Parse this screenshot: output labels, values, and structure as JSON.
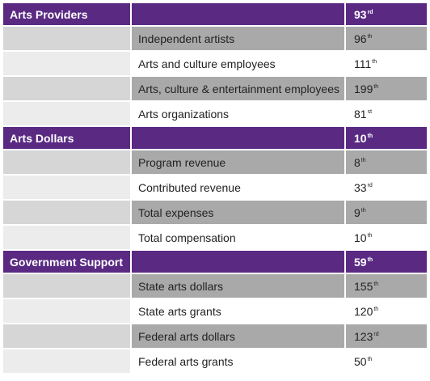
{
  "sections": [
    {
      "title": "Arts Providers",
      "rank": 93,
      "suffix": "rd",
      "items": [
        {
          "label": "Independent artists",
          "rank": 96,
          "suffix": "th"
        },
        {
          "label": "Arts and culture employees",
          "rank": 111,
          "suffix": "th"
        },
        {
          "label": "Arts, culture & entertainment employees",
          "rank": 199,
          "suffix": "th"
        },
        {
          "label": "Arts organizations",
          "rank": 81,
          "suffix": "st"
        }
      ]
    },
    {
      "title": "Arts Dollars",
      "rank": 10,
      "suffix": "th",
      "items": [
        {
          "label": "Program revenue",
          "rank": 8,
          "suffix": "th"
        },
        {
          "label": "Contributed revenue",
          "rank": 33,
          "suffix": "rd"
        },
        {
          "label": "Total expenses",
          "rank": 9,
          "suffix": "th"
        },
        {
          "label": "Total compensation",
          "rank": 10,
          "suffix": "th"
        }
      ]
    },
    {
      "title": "Government Support",
      "rank": 59,
      "suffix": "th",
      "items": [
        {
          "label": "State arts dollars",
          "rank": 155,
          "suffix": "th"
        },
        {
          "label": "State arts grants",
          "rank": 120,
          "suffix": "th"
        },
        {
          "label": "Federal arts dollars",
          "rank": 123,
          "suffix": "rd"
        },
        {
          "label": "Federal arts grants",
          "rank": 50,
          "suffix": "th"
        }
      ]
    }
  ]
}
